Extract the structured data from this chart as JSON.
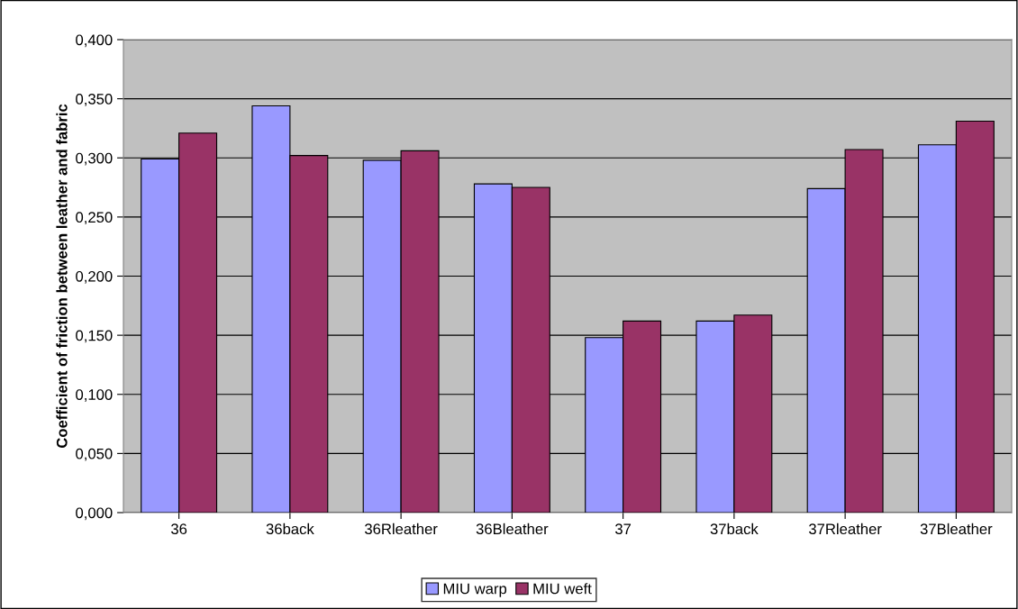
{
  "chart_data": {
    "type": "bar",
    "ylabel": "Coefficient of friction between leather and fabric",
    "categories": [
      "36",
      "36back",
      "36Rleather",
      "36Bleather",
      "37",
      "37back",
      "37Rleather",
      "37Bleather"
    ],
    "series": [
      {
        "name": "MIU warp",
        "color": "#9999ff",
        "values": [
          0.299,
          0.344,
          0.298,
          0.278,
          0.148,
          0.162,
          0.274,
          0.311
        ]
      },
      {
        "name": "MIU weft",
        "color": "#993366",
        "values": [
          0.321,
          0.302,
          0.306,
          0.275,
          0.162,
          0.167,
          0.307,
          0.331
        ]
      }
    ],
    "ylim": [
      0,
      0.4
    ],
    "yticks": [
      {
        "value": 0,
        "label": "0,000"
      },
      {
        "value": 0.05,
        "label": "0,050"
      },
      {
        "value": 0.1,
        "label": "0,100"
      },
      {
        "value": 0.15,
        "label": "0,150"
      },
      {
        "value": 0.2,
        "label": "0,200"
      },
      {
        "value": 0.25,
        "label": "0,250"
      },
      {
        "value": 0.3,
        "label": "0,300"
      },
      {
        "value": 0.35,
        "label": "0,350"
      },
      {
        "value": 0.4,
        "label": "0,400"
      }
    ],
    "grid": "y",
    "legend": "bottom"
  }
}
